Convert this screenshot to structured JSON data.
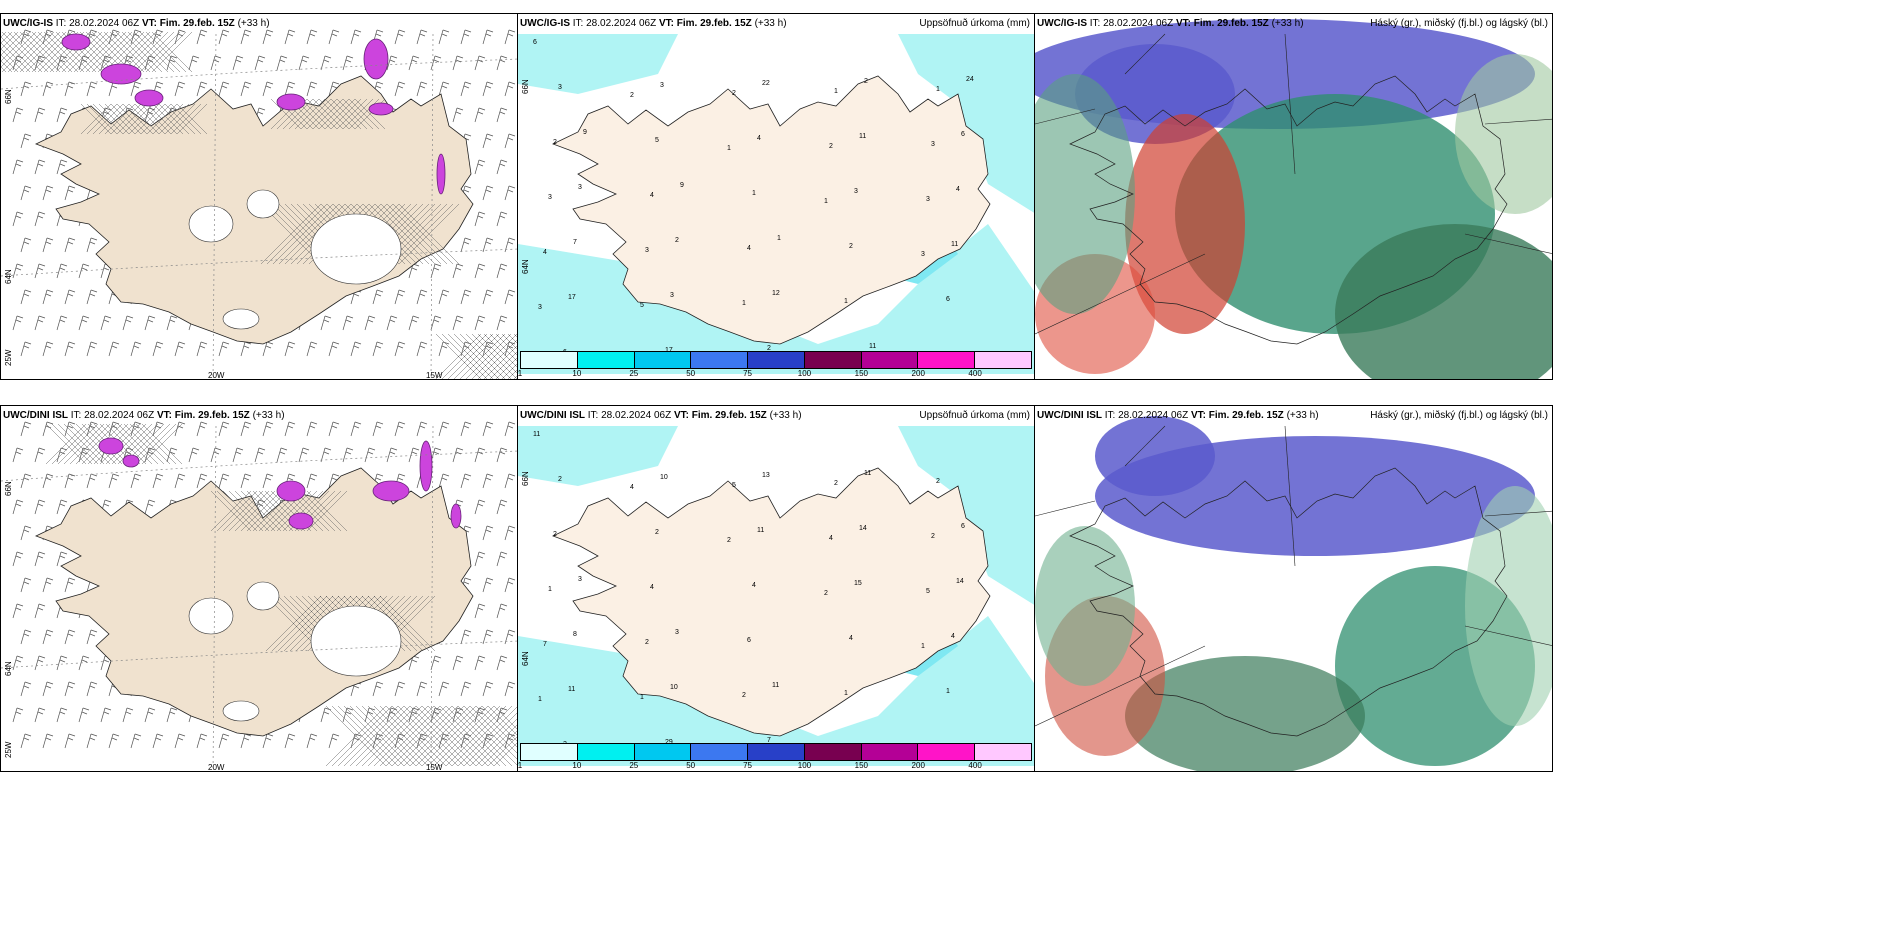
{
  "panels": {
    "top_left": {
      "model": "UWC/IG-IS",
      "it": "IT: 28.02.2024 06Z",
      "vt_label": "VT: Fim. 29.feb. 15Z",
      "lead": "(+33 h)",
      "right": ""
    },
    "top_mid": {
      "model": "UWC/IG-IS",
      "it": "IT: 28.02.2024 06Z",
      "vt_label": "VT: Fim. 29.feb. 15Z",
      "lead": "(+33 h)",
      "right": "Uppsöfnuð úrkoma (mm)"
    },
    "top_right": {
      "model": "UWC/IG-IS",
      "it": "IT: 28.02.2024 06Z",
      "vt_label": "VT: Fim. 29.feb. 15Z",
      "lead": "(+33 h)",
      "right": "Háský (gr.), miðský (fj.bl.) og lágský (bl.)"
    },
    "bot_left": {
      "model": "UWC/DINI ISL",
      "it": "IT: 28.02.2024 06Z",
      "vt_label": "VT: Fim. 29.feb. 15Z",
      "lead": "(+33 h)",
      "right": ""
    },
    "bot_mid": {
      "model": "UWC/DINI ISL",
      "it": "IT: 28.02.2024 06Z",
      "vt_label": "VT: Fim. 29.feb. 15Z",
      "lead": "(+33 h)",
      "right": "Uppsöfnuð úrkoma (mm)"
    },
    "bot_right": {
      "model": "UWC/DINI ISL",
      "it": "IT: 28.02.2024 06Z",
      "vt_label": "VT: Fim. 29.feb. 15Z",
      "lead": "(+33 h)",
      "right": "Háský (gr.), miðský (fj.bl.) og lágský (bl.)"
    }
  },
  "axes": {
    "lat_66": "66N",
    "lat_64": "64N",
    "lat_25w": "25W",
    "lon_20w": "20W",
    "lon_15w": "15W"
  },
  "legend": {
    "ticks": [
      "1",
      "10",
      "25",
      "50",
      "75",
      "100",
      "150",
      "200",
      "400"
    ],
    "colors": [
      "#e0ffff",
      "#00f0f0",
      "#00c8f0",
      "#3c78f0",
      "#2840c8",
      "#780050",
      "#b40096",
      "#ff14c8",
      "#ffc8ff"
    ]
  },
  "colors": {
    "land": "#f0e2cf",
    "sea": "#ffffff",
    "precip": "#b0f4f4",
    "snow_purple": "#cc44dd"
  },
  "precip_labels_top": [
    "6",
    "2",
    "1",
    "1",
    "3",
    "3",
    "5",
    "2",
    "2",
    "3",
    "4",
    "5",
    "2",
    "1",
    "3",
    "3",
    "3",
    "1",
    "3",
    "1",
    "2",
    "4",
    "4",
    "1",
    "2",
    "3",
    "5",
    "1",
    "2",
    "6",
    "6",
    "3",
    "4",
    "3",
    "11",
    "17",
    "17",
    "22",
    "11",
    "4",
    "7",
    "3",
    "2",
    "2",
    "6",
    "3",
    "2",
    "12",
    "11",
    "24",
    "9",
    "9",
    "1"
  ],
  "precip_labels_bot": [
    "11",
    "4",
    "2",
    "2",
    "1",
    "1",
    "1",
    "5",
    "4",
    "5",
    "7",
    "1",
    "7",
    "2",
    "2",
    "1",
    "2",
    "2",
    "2",
    "2",
    "2",
    "4",
    "6",
    "1",
    "4",
    "2",
    "2",
    "4",
    "4",
    "1",
    "2",
    "10",
    "11",
    "15",
    "4",
    "11",
    "29",
    "13",
    "14",
    "14",
    "8",
    "10",
    "7",
    "11",
    "6",
    "3",
    "3",
    "11"
  ]
}
